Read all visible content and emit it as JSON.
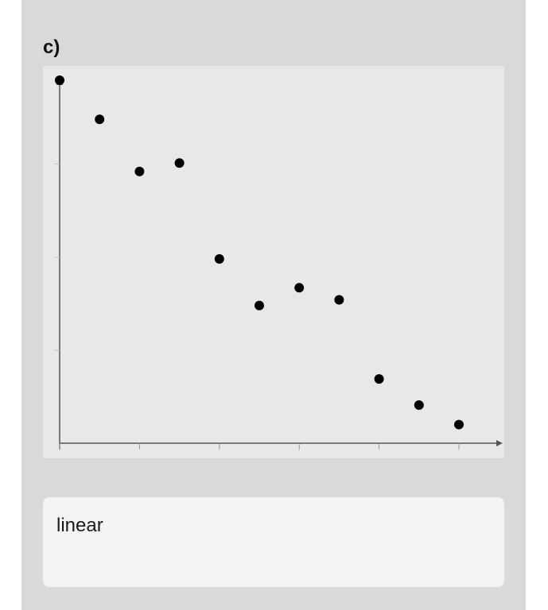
{
  "question": {
    "label": "c)"
  },
  "chart_data": {
    "type": "scatter",
    "title": "",
    "xlabel": "",
    "ylabel": "",
    "xlim": [
      0,
      10
    ],
    "ylim": [
      0,
      3.9
    ],
    "x_ticks": [
      0,
      2,
      4,
      6,
      8,
      10
    ],
    "y_ticks": [
      0,
      1,
      2,
      3
    ],
    "grid": false,
    "points": [
      {
        "x": 0,
        "y": 3.9
      },
      {
        "x": 1,
        "y": 3.48
      },
      {
        "x": 2,
        "y": 2.92
      },
      {
        "x": 3,
        "y": 3.01
      },
      {
        "x": 4,
        "y": 1.98
      },
      {
        "x": 5,
        "y": 1.48
      },
      {
        "x": 6,
        "y": 1.67
      },
      {
        "x": 7,
        "y": 1.54
      },
      {
        "x": 8,
        "y": 0.69
      },
      {
        "x": 9,
        "y": 0.41
      },
      {
        "x": 10,
        "y": 0.2
      }
    ],
    "marker_color": "#000000",
    "axis_color": "#555555"
  },
  "answer": {
    "value": "linear"
  }
}
